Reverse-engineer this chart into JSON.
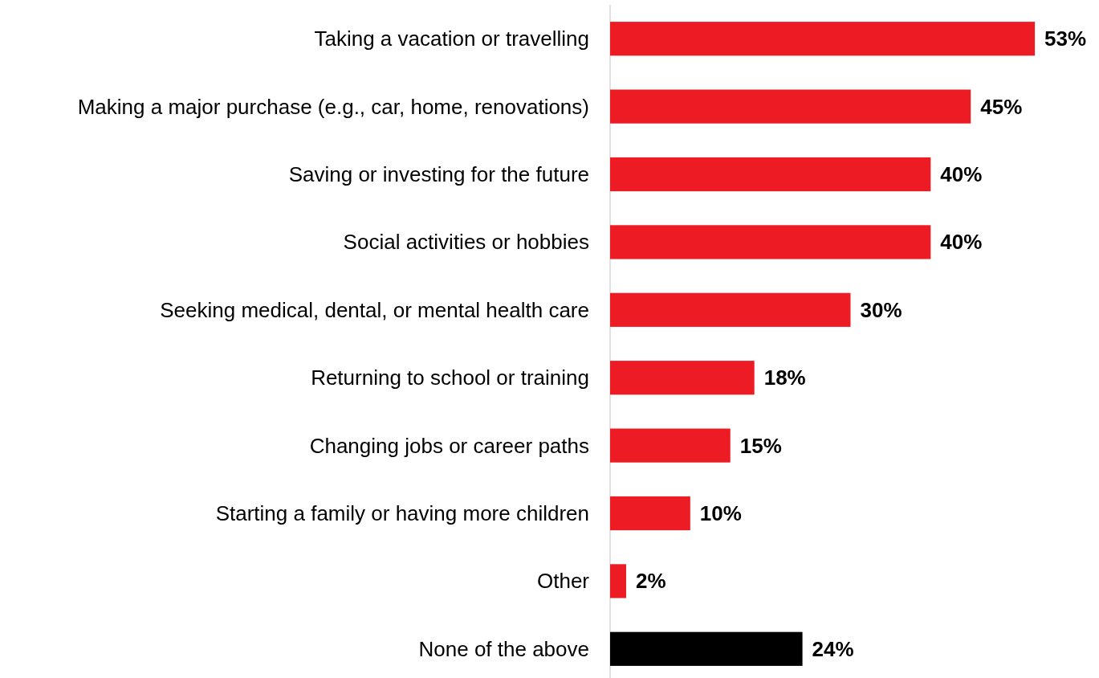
{
  "chart_data": {
    "type": "bar",
    "orientation": "horizontal",
    "data_labels": true,
    "categories": [
      "Taking a vacation or travelling",
      "Making a major purchase (e.g., car, home, renovations)",
      "Saving or investing for the future",
      "Social activities or hobbies",
      "Seeking medical, dental, or mental health care",
      "Returning to school or training",
      "Changing jobs or career paths",
      "Starting a family or having more children",
      "Other",
      "None of the above"
    ],
    "values": [
      53,
      45,
      40,
      40,
      30,
      18,
      15,
      10,
      2,
      24
    ],
    "value_labels": [
      "53%",
      "45%",
      "40%",
      "40%",
      "30%",
      "18%",
      "15%",
      "10%",
      "2%",
      "24%"
    ],
    "colors": [
      "#ed1c24",
      "#ed1c24",
      "#ed1c24",
      "#ed1c24",
      "#ed1c24",
      "#ed1c24",
      "#ed1c24",
      "#ed1c24",
      "#ed1c24",
      "#000000"
    ]
  }
}
